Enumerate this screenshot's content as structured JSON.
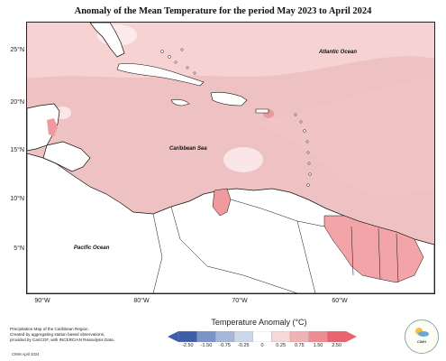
{
  "title": "Anomaly of the Mean Temperature for the period May 2023 to April 2024",
  "axes": {
    "latitude_labels": [
      "25°N",
      "20°N",
      "15°N",
      "10°N",
      "5°N"
    ],
    "longitude_labels": [
      "90°W",
      "80°W",
      "70°W",
      "60°W"
    ]
  },
  "map_labels": {
    "atlantic": "Atlantic Ocean",
    "caribbean": "Caribbean Sea",
    "pacific": "Pacific Ocean"
  },
  "legend": {
    "title": "Temperature Anomaly (°C)",
    "ticks": [
      "-2.50",
      "-1.50",
      "-0.75",
      "-0.25",
      "0",
      "0.25",
      "0.75",
      "1.50",
      "2.50"
    ],
    "colors": [
      "#3d5ea8",
      "#7b93c6",
      "#a7b7da",
      "#cdd7ea",
      "#ffffff",
      "#f7d9d9",
      "#f0b3b5",
      "#ee8d93",
      "#e8656f"
    ]
  },
  "footnote": {
    "line1": "Precipitation Map of the Caribbean Region.",
    "line2": "Created by aggregating station based observations,",
    "line3": "provided by CariCOF, with INCERCIAN Reanalysis Data.",
    "credit": "CIMH April 2024"
  },
  "logo": {
    "text": "CIMH",
    "icon": "cimh-logo"
  }
}
